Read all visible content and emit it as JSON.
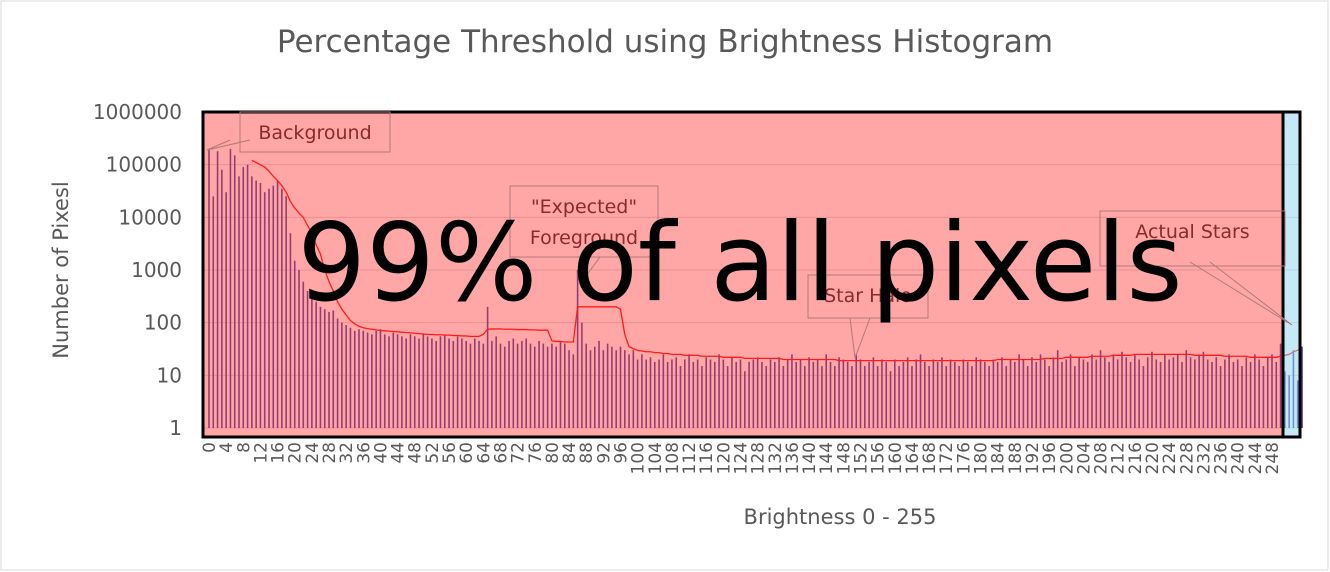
{
  "chart_data": {
    "type": "histogram-line",
    "title": "Percentage Threshold using Brightness Histogram",
    "x_label": "Brightness 0 - 255",
    "y_label": "Number of Pixesl",
    "log_scale": true,
    "grid": true,
    "ylim": [
      1,
      1000000
    ],
    "yticks": [
      1,
      10,
      100,
      1000,
      10000,
      100000,
      1000000
    ],
    "categories": [
      "0",
      null,
      null,
      null,
      "4",
      null,
      null,
      null,
      "8",
      null,
      null,
      null,
      "12",
      null,
      null,
      null,
      "16",
      null,
      null,
      null,
      "20",
      null,
      null,
      null,
      "24",
      null,
      null,
      null,
      "28",
      null,
      null,
      null,
      "32",
      null,
      null,
      null,
      "36",
      null,
      null,
      null,
      "40",
      null,
      null,
      null,
      "44",
      null,
      null,
      null,
      "48",
      null,
      null,
      null,
      "52",
      null,
      null,
      null,
      "56",
      null,
      null,
      null,
      "60",
      null,
      null,
      null,
      "64",
      null,
      null,
      null,
      "68",
      null,
      null,
      null,
      "72",
      null,
      null,
      null,
      "76",
      null,
      null,
      null,
      "80",
      null,
      null,
      null,
      "84",
      null,
      null,
      null,
      "88",
      null,
      null,
      null,
      "92",
      null,
      null,
      null,
      "96",
      null,
      null,
      null,
      "100",
      null,
      null,
      null,
      "104",
      null,
      null,
      null,
      "108",
      null,
      null,
      null,
      "112",
      null,
      null,
      null,
      "116",
      null,
      null,
      null,
      "120",
      null,
      null,
      null,
      "124",
      null,
      null,
      null,
      "128",
      null,
      null,
      null,
      "132",
      null,
      null,
      null,
      "136",
      null,
      null,
      null,
      "140",
      null,
      null,
      null,
      "144",
      null,
      null,
      null,
      "148",
      null,
      null,
      null,
      "152",
      null,
      null,
      null,
      "156",
      null,
      null,
      null,
      "160",
      null,
      null,
      null,
      "164",
      null,
      null,
      null,
      "168",
      null,
      null,
      null,
      "172",
      null,
      null,
      null,
      "176",
      null,
      null,
      null,
      "180",
      null,
      null,
      null,
      "184",
      null,
      null,
      null,
      "188",
      null,
      null,
      null,
      "192",
      null,
      null,
      null,
      "196",
      null,
      null,
      null,
      "200",
      null,
      null,
      null,
      "204",
      null,
      null,
      null,
      "208",
      null,
      null,
      null,
      "212",
      null,
      null,
      null,
      "216",
      null,
      null,
      null,
      "220",
      null,
      null,
      null,
      "224",
      null,
      null,
      null,
      "228",
      null,
      null,
      null,
      "232",
      null,
      null,
      null,
      "236",
      null,
      null,
      null,
      "240",
      null,
      null,
      null,
      "244",
      null,
      null,
      null,
      "248",
      null,
      null,
      null,
      null,
      null,
      null,
      null
    ],
    "series": [
      {
        "kind": "bar",
        "color": "#3f3f9f",
        "values": [
          200000,
          25000,
          180000,
          80000,
          30000,
          200000,
          150000,
          60000,
          90000,
          100000,
          60000,
          50000,
          45000,
          30000,
          35000,
          40000,
          50000,
          35000,
          25000,
          5000,
          1500,
          1000,
          600,
          400,
          300,
          250,
          200,
          180,
          160,
          170,
          120,
          100,
          90,
          80,
          70,
          75,
          70,
          65,
          60,
          70,
          75,
          60,
          55,
          65,
          60,
          55,
          50,
          60,
          55,
          50,
          60,
          55,
          50,
          45,
          55,
          60,
          50,
          45,
          55,
          50,
          45,
          40,
          50,
          45,
          40,
          200,
          45,
          55,
          40,
          35,
          45,
          50,
          40,
          45,
          50,
          40,
          35,
          45,
          40,
          35,
          40,
          35,
          45,
          40,
          30,
          25,
          1000,
          100,
          40,
          30,
          35,
          45,
          30,
          40,
          35,
          30,
          35,
          30,
          25,
          30,
          20,
          25,
          20,
          22,
          18,
          20,
          25,
          18,
          20,
          22,
          15,
          20,
          25,
          18,
          20,
          15,
          22,
          20,
          18,
          25,
          20,
          15,
          22,
          18,
          20,
          12,
          18,
          20,
          22,
          18,
          15,
          20,
          18,
          22,
          15,
          20,
          25,
          18,
          20,
          15,
          22,
          18,
          20,
          15,
          25,
          18,
          15,
          22,
          20,
          18,
          15,
          25,
          20,
          15,
          18,
          22,
          15,
          20,
          18,
          12,
          20,
          15,
          18,
          22,
          15,
          20,
          25,
          18,
          15,
          20,
          18,
          22,
          15,
          20,
          18,
          15,
          20,
          18,
          15,
          22,
          20,
          18,
          15,
          20,
          18,
          22,
          15,
          20,
          18,
          25,
          20,
          15,
          22,
          18,
          25,
          20,
          15,
          22,
          30,
          18,
          20,
          25,
          15,
          22,
          20,
          18,
          25,
          20,
          30,
          22,
          18,
          25,
          20,
          28,
          22,
          18,
          25,
          20,
          15,
          22,
          28,
          20,
          18,
          25,
          20,
          22,
          25,
          18,
          30,
          22,
          20,
          25,
          28,
          20,
          18,
          22,
          15,
          20,
          25,
          18,
          20,
          15,
          22,
          18,
          25,
          20,
          15,
          22,
          25,
          18,
          40,
          12,
          10,
          30,
          8,
          35
        ]
      },
      {
        "kind": "line",
        "color": "#ff0000",
        "values": [
          null,
          null,
          null,
          null,
          null,
          null,
          null,
          null,
          null,
          null,
          120000,
          110000,
          100000,
          90000,
          75000,
          60000,
          50000,
          40000,
          30000,
          20000,
          15000,
          12000,
          10000,
          7000,
          5000,
          3000,
          2000,
          1000,
          600,
          400,
          250,
          180,
          140,
          110,
          95,
          85,
          80,
          77,
          75,
          73,
          71,
          70,
          69,
          68,
          67,
          66,
          65,
          64,
          63,
          62,
          61,
          60,
          60,
          59,
          59,
          58,
          58,
          57,
          57,
          56,
          56,
          55,
          55,
          55,
          60,
          75,
          76,
          76,
          76,
          75,
          75,
          75,
          74,
          74,
          74,
          73,
          73,
          72,
          72,
          72,
          45,
          44,
          44,
          43,
          43,
          43,
          200,
          200,
          200,
          200,
          200,
          200,
          200,
          200,
          200,
          200,
          180,
          60,
          35,
          32,
          30,
          29,
          28,
          28,
          27,
          27,
          26,
          26,
          25,
          25,
          25,
          24,
          24,
          24,
          24,
          23,
          23,
          23,
          23,
          23,
          22,
          22,
          22,
          22,
          22,
          21,
          21,
          21,
          21,
          21,
          21,
          21,
          21,
          21,
          20,
          20,
          20,
          20,
          20,
          20,
          20,
          20,
          20,
          20,
          20,
          20,
          20,
          19,
          19,
          19,
          19,
          19,
          19,
          19,
          19,
          19,
          19,
          19,
          19,
          19,
          19,
          19,
          19,
          19,
          19,
          19,
          19,
          19,
          19,
          19,
          19,
          19,
          19,
          19,
          19,
          19,
          19,
          19,
          19,
          19,
          19,
          19,
          19,
          19,
          20,
          20,
          20,
          20,
          20,
          20,
          20,
          20,
          20,
          20,
          20,
          21,
          21,
          21,
          21,
          21,
          22,
          22,
          22,
          22,
          22,
          22,
          23,
          23,
          23,
          23,
          23,
          24,
          24,
          24,
          24,
          24,
          25,
          25,
          25,
          25,
          25,
          25,
          25,
          25,
          25,
          25,
          25,
          25,
          25,
          25,
          24,
          24,
          24,
          24,
          24,
          24,
          24,
          23,
          23,
          23,
          23,
          23,
          23,
          22,
          22,
          22,
          22,
          22,
          22,
          22,
          23,
          24,
          25,
          28,
          30,
          35
        ]
      }
    ],
    "annotations": [
      [
        "Background"
      ],
      [
        "\"Expected\"",
        "Foreground"
      ],
      [
        "Star Halo"
      ],
      [
        "Actual Stars"
      ]
    ],
    "overlay_text": "99% of all pixels"
  }
}
